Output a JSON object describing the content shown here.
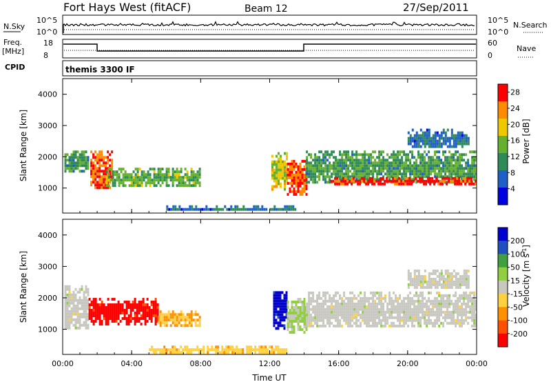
{
  "header": {
    "station": "Fort Hays West (fitACF)",
    "beam": "Beam 12",
    "date": "27/Sep/2011"
  },
  "status_panels": {
    "nsky_label": "N.Sky",
    "nsearch_label": "N.Search",
    "nsky_ticks": [
      "10^5",
      "10^0"
    ],
    "freq_label": "Freq.",
    "freq_unit": "[MHz]",
    "freq_ticks": [
      "18",
      "8"
    ],
    "nave_label": "Nave",
    "nave_ticks": [
      "60",
      "0"
    ],
    "cpid_label": "CPID",
    "cpid_value": "themis 3300 IF"
  },
  "chart_data": [
    {
      "type": "heatmap",
      "name": "Power",
      "xlabel": "Time UT",
      "ylabel": "Slant Range [km]",
      "xlim": [
        0,
        24
      ],
      "ylim": [
        200,
        4500
      ],
      "x_ticks": [
        "00:00",
        "04:00",
        "08:00",
        "12:00",
        "16:00",
        "20:00",
        "00:00"
      ],
      "y_ticks": [
        "1000",
        "2000",
        "3000",
        "4000"
      ],
      "colorbar": {
        "label": "Power [dB]",
        "ticks": [
          "4",
          "8",
          "12",
          "16",
          "20",
          "24",
          "28"
        ],
        "colors": [
          "#0000e0",
          "#1f5fc8",
          "#2e8b57",
          "#66b030",
          "#f0c800",
          "#ff8c00",
          "#ff0000"
        ],
        "range": [
          0,
          30
        ]
      },
      "echo_regions": [
        {
          "t0": 0.1,
          "t1": 1.5,
          "r0": 1500,
          "r1": 2200,
          "value": 12
        },
        {
          "t0": 1.6,
          "t1": 2.8,
          "r0": 1000,
          "r1": 2200,
          "value": 26
        },
        {
          "t0": 2.5,
          "t1": 7.9,
          "r0": 1050,
          "r1": 1650,
          "value": 14
        },
        {
          "t0": 12.1,
          "t1": 13.0,
          "r0": 1000,
          "r1": 2150,
          "value": 18
        },
        {
          "t0": 13.0,
          "t1": 14.1,
          "r0": 800,
          "r1": 1900,
          "value": 26
        },
        {
          "t0": 14.1,
          "t1": 24.0,
          "r0": 1150,
          "r1": 2200,
          "value": 12
        },
        {
          "t0": 15.5,
          "t1": 24.0,
          "r0": 1150,
          "r1": 1350,
          "value": 28
        },
        {
          "t0": 6.0,
          "t1": 13.5,
          "r0": 280,
          "r1": 450,
          "value": 8
        },
        {
          "t0": 20.0,
          "t1": 23.5,
          "r0": 2300,
          "r1": 2900,
          "value": 8
        }
      ]
    },
    {
      "type": "heatmap",
      "name": "Velocity",
      "xlabel": "Time UT",
      "ylabel": "Slant Range [km]",
      "xlim": [
        0,
        24
      ],
      "ylim": [
        200,
        4500
      ],
      "x_ticks": [
        "00:00",
        "04:00",
        "08:00",
        "12:00",
        "16:00",
        "20:00",
        "00:00"
      ],
      "y_ticks": [
        "1000",
        "2000",
        "3000",
        "4000"
      ],
      "colorbar": {
        "label": "Velocity [m s^-1]",
        "ticks": [
          "200",
          "100",
          "50",
          "15",
          "-15",
          "-50",
          "-100",
          "-200"
        ],
        "colors": [
          "#0000d0",
          "#2050c0",
          "#40a040",
          "#90d040",
          "#c8c8c0",
          "#ffd040",
          "#ff9000",
          "#ff5000",
          "#ff0000"
        ],
        "range": [
          -250,
          250
        ]
      },
      "echo_regions": [
        {
          "t0": 0.1,
          "t1": 1.5,
          "r0": 1000,
          "r1": 2400,
          "value": 0
        },
        {
          "t0": 1.5,
          "t1": 5.5,
          "r0": 1200,
          "r1": 2000,
          "value": -220
        },
        {
          "t0": 5.5,
          "t1": 7.9,
          "r0": 1100,
          "r1": 1600,
          "value": -80
        },
        {
          "t0": 12.2,
          "t1": 13.0,
          "r0": 1000,
          "r1": 2300,
          "value": 220
        },
        {
          "t0": 13.0,
          "t1": 14.1,
          "r0": 900,
          "r1": 2000,
          "value": 40
        },
        {
          "t0": 14.1,
          "t1": 24.0,
          "r0": 1100,
          "r1": 2200,
          "value": 0
        },
        {
          "t0": 5.0,
          "t1": 13.0,
          "r0": 280,
          "r1": 480,
          "value": -60
        },
        {
          "t0": 20.0,
          "t1": 23.5,
          "r0": 2300,
          "r1": 2900,
          "value": 0
        }
      ]
    }
  ]
}
